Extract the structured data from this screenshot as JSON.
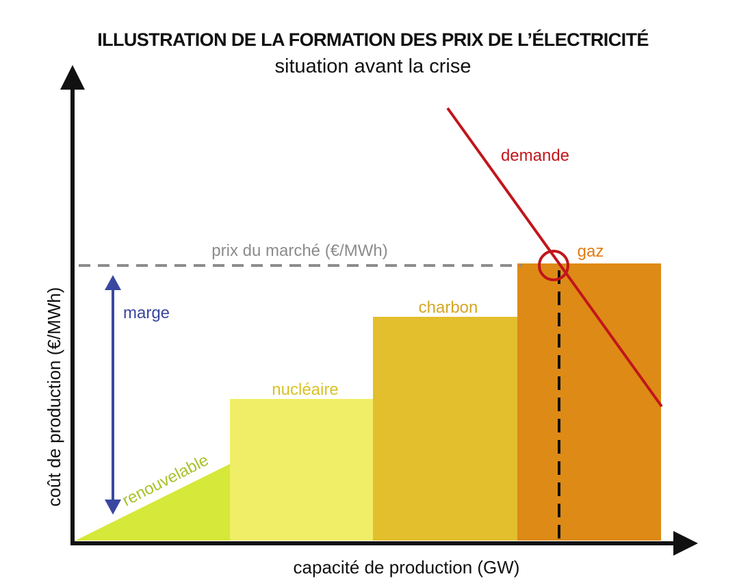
{
  "header": {
    "title": "ILLUSTRATION DE LA FORMATION DES PRIX DE L’ÉLECTRICITÉ",
    "subtitle": "situation avant la crise"
  },
  "axes": {
    "x_label": "capacité de production (GW)",
    "y_label": "coût de production (€/MWh)"
  },
  "supply_blocks": [
    {
      "label": "renouvelable",
      "shape": "ramp",
      "color": "#d6e83a",
      "label_color": "#a8c22a"
    },
    {
      "label": "nucléaire",
      "shape": "rect",
      "color": "#f0ee66",
      "label_color": "#d8c226"
    },
    {
      "label": "charbon",
      "shape": "rect",
      "color": "#e3be2d",
      "label_color": "#d4a726"
    },
    {
      "label": "gaz",
      "shape": "rect",
      "color": "#de8a16",
      "label_color": "#e07b12"
    }
  ],
  "market_price": {
    "label": "prix du marché (€/MWh)",
    "color": "#8c8c8c"
  },
  "demand": {
    "label": "demande",
    "color": "#c0161b"
  },
  "margin": {
    "label": "marge",
    "color": "#3a47a0"
  }
}
